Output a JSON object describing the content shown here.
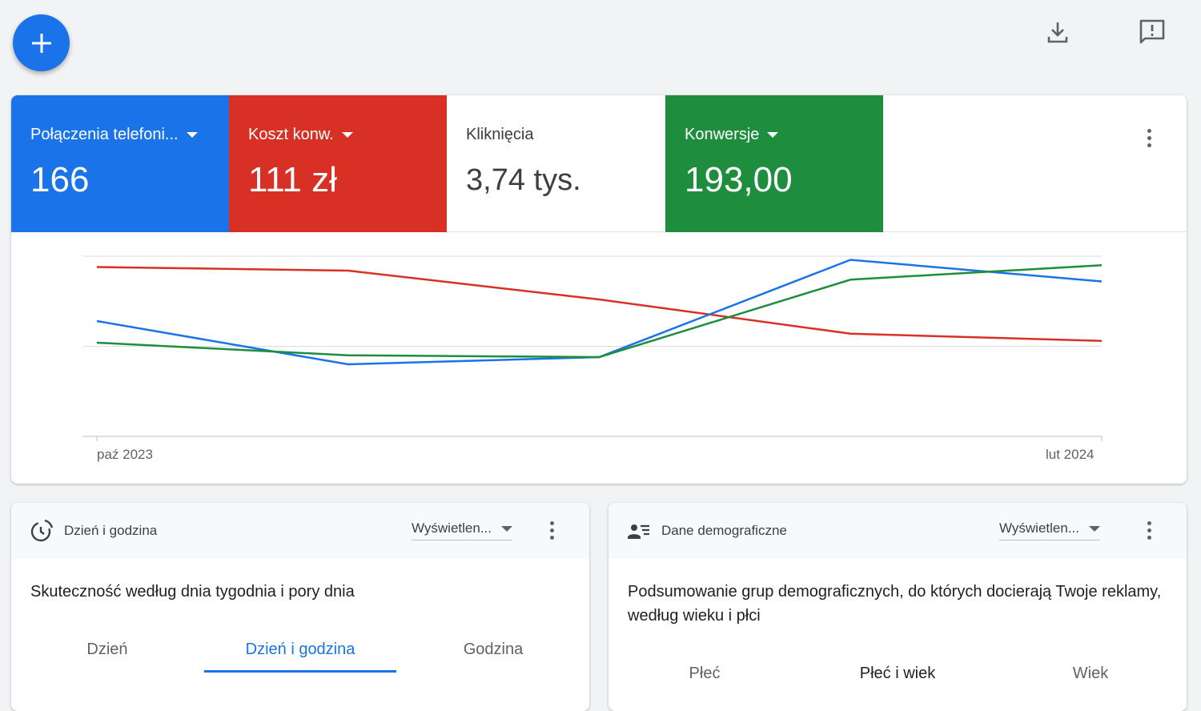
{
  "toolbar": {
    "add": "add-icon",
    "download": "download-icon",
    "feedback": "feedback-icon"
  },
  "metrics": [
    {
      "label": "Połączenia telefoni...",
      "value": "166",
      "color": "#1a73e8"
    },
    {
      "label": "Koszt konw.",
      "value": "111 zł",
      "color": "#d93025"
    },
    {
      "label": "Kliknięcia",
      "value": "3,74 tys.",
      "color": "#ffffff"
    },
    {
      "label": "Konwersje",
      "value": "193,00",
      "color": "#1e8e3e"
    }
  ],
  "chart_data": {
    "type": "line",
    "x_start_label": "paź 2023",
    "x_end_label": "lut 2024",
    "ylim": [
      0,
      100
    ],
    "grid": true,
    "series": [
      {
        "name": "Koszt konw.",
        "color": "#d93025",
        "values": [
          94,
          92,
          76,
          57,
          53
        ]
      },
      {
        "name": "Połączenia telefoniczne",
        "color": "#1a73e8",
        "values": [
          64,
          40,
          44,
          98,
          86
        ]
      },
      {
        "name": "Konwersje",
        "color": "#1e8e3e",
        "values": [
          52,
          45,
          44,
          87,
          95
        ]
      }
    ]
  },
  "panels": [
    {
      "title": "Dzień i godzina",
      "dropdown": "Wyświetlen...",
      "description": "Skuteczność według dnia tygodnia i pory dnia",
      "tabs": [
        "Dzień",
        "Dzień i godzina",
        "Godzina"
      ],
      "active_tab": 1
    },
    {
      "title": "Dane demograficzne",
      "dropdown": "Wyświetlen...",
      "description": "Podsumowanie grup demograficznych, do których docierają Twoje reklamy, według wieku i płci",
      "tabs": [
        "Płeć",
        "Płeć i wiek",
        "Wiek"
      ],
      "active_tab": 1
    }
  ]
}
